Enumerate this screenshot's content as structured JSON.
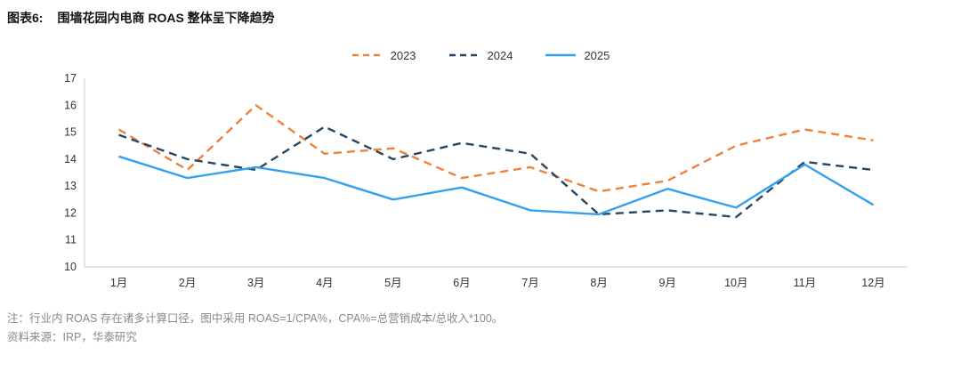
{
  "title": {
    "label": "图表6:",
    "text": "围墙花园内电商 ROAS 整体呈下降趋势"
  },
  "notes": {
    "note1": "注：行业内 ROAS 存在诸多计算口径，图中采用 ROAS=1/CPA%，CPA%=总营销成本/总收入*100。",
    "source": "资料来源：IRP，华泰研究"
  },
  "colors": {
    "axis_line": "#c9c9c9",
    "tick_text": "#333333",
    "note_text": "#898989"
  },
  "chart_data": {
    "type": "line",
    "categories": [
      "1月",
      "2月",
      "3月",
      "4月",
      "5月",
      "6月",
      "7月",
      "8月",
      "9月",
      "10月",
      "11月",
      "12月"
    ],
    "series": [
      {
        "name": "2023",
        "color": "#F0813A",
        "style": "dashed",
        "values": [
          15.1,
          13.6,
          16.0,
          14.2,
          14.4,
          13.3,
          13.7,
          12.8,
          13.2,
          14.5,
          15.1,
          14.7
        ]
      },
      {
        "name": "2024",
        "color": "#28465F",
        "style": "dashed",
        "values": [
          14.9,
          14.0,
          13.6,
          15.2,
          14.0,
          14.6,
          14.2,
          11.95,
          12.1,
          11.85,
          13.9,
          13.6
        ]
      },
      {
        "name": "2025",
        "color": "#35A0ED",
        "style": "solid",
        "values": [
          14.1,
          13.3,
          13.7,
          13.3,
          12.5,
          12.95,
          12.1,
          11.95,
          12.9,
          12.2,
          13.8,
          12.3
        ]
      }
    ],
    "ylim": [
      10,
      17
    ],
    "yticks": [
      10,
      11,
      12,
      13,
      14,
      15,
      16,
      17
    ],
    "grid": false,
    "legend_position": "top",
    "xlabel": "",
    "ylabel": "",
    "title": "围墙花园内电商 ROAS 整体呈下降趋势"
  }
}
